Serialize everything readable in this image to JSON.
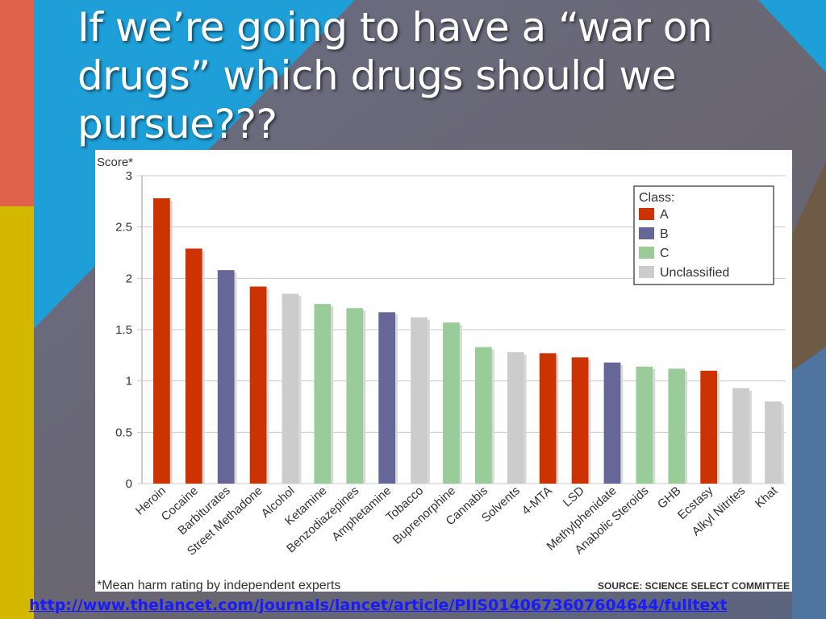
{
  "slide": {
    "title": "If we’re going to have a “war on drugs” which drugs should we pursue???",
    "link_text": "http://www.thelancet.com/journals/lancet/article/PIIS0140673607604644/fulltext"
  },
  "colors": {
    "class_A": "#cc3300",
    "class_B": "#666699",
    "class_C": "#99cc99",
    "unclassified": "#cccccc",
    "background": "#6b6a72",
    "accent_blue": "#1e9fd8",
    "accent_orange": "#e0624a",
    "accent_yellow": "#d4b800",
    "accent_brown": "#6f5a45"
  },
  "chart_data": {
    "type": "bar",
    "ylabel": "Score*",
    "ylim": [
      0,
      3
    ],
    "yticks": [
      "0",
      "0.5",
      "1",
      "1.5",
      "2",
      "2.5",
      "3"
    ],
    "grid": true,
    "legend_position": "top-right",
    "legend_title": "Class:",
    "legend": [
      {
        "key": "A",
        "label": "A"
      },
      {
        "key": "B",
        "label": "B"
      },
      {
        "key": "C",
        "label": "C"
      },
      {
        "key": "U",
        "label": "Unclassified"
      }
    ],
    "categories": [
      "Heroin",
      "Cocaine",
      "Barbiturates",
      "Street Methadone",
      "Alcohol",
      "Ketamine",
      "Benzodiazepines",
      "Amphetamine",
      "Tobacco",
      "Buprenorphine",
      "Cannabis",
      "Solvents",
      "4-MTA",
      "LSD",
      "Methylphenidate",
      "Anabolic Steroids",
      "GHB",
      "Ecstasy",
      "Alkyl Nitrites",
      "Khat"
    ],
    "values": [
      2.78,
      2.29,
      2.08,
      1.92,
      1.85,
      1.75,
      1.71,
      1.67,
      1.62,
      1.57,
      1.33,
      1.28,
      1.27,
      1.23,
      1.18,
      1.14,
      1.12,
      1.1,
      0.93,
      0.8
    ],
    "classes": [
      "A",
      "A",
      "B",
      "A",
      "U",
      "C",
      "C",
      "B",
      "U",
      "C",
      "C",
      "U",
      "A",
      "A",
      "B",
      "C",
      "C",
      "A",
      "U",
      "U"
    ],
    "footnote": "*Mean harm rating by independent experts",
    "source": "SOURCE: SCIENCE SELECT COMMITTEE"
  }
}
